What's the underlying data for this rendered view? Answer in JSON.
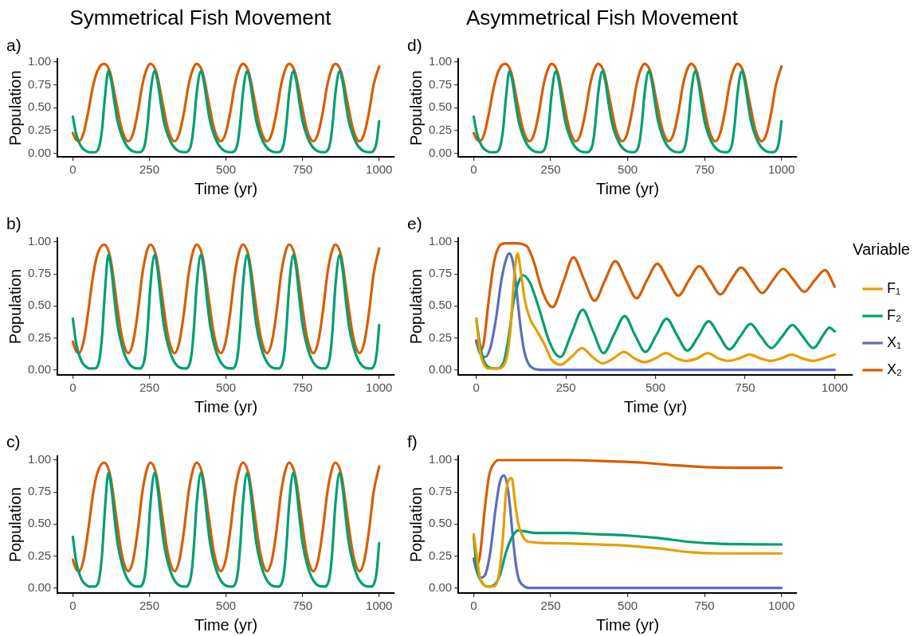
{
  "chart_data": [
    {
      "type": "line",
      "title": "Symmetrical Fish Movement",
      "subtitle": "a)",
      "xlabel": "Time (yr)",
      "ylabel": "Population",
      "xlim": [
        -50,
        1050
      ],
      "xticks": [
        0,
        250,
        500,
        750,
        1000
      ],
      "ylim": [
        -0.04,
        1.03
      ],
      "yticks": [
        {
          "value": 0,
          "label": "0.00"
        },
        {
          "value": 0.25,
          "label": "0.25"
        },
        {
          "value": 0.5,
          "label": "0.50"
        },
        {
          "value": 0.75,
          "label": "0.75"
        },
        {
          "value": 1,
          "label": "1.00"
        }
      ],
      "grid": false,
      "legend": false,
      "series": [
        {
          "color": "#009e73",
          "x": [
            0,
            10,
            20,
            30,
            40,
            55,
            70,
            85,
            95,
            105,
            116,
            126,
            136,
            146,
            161,
            176,
            196,
            216,
            231,
            238,
            245,
            253,
            267,
            277,
            287,
            297,
            312,
            327,
            347,
            367,
            382,
            389,
            396,
            404,
            418,
            428,
            438,
            448,
            463,
            478,
            498,
            518,
            533,
            540,
            547,
            555,
            569,
            579,
            589,
            599,
            614,
            629,
            649,
            669,
            684,
            691,
            698,
            706,
            720,
            730,
            740,
            750,
            765,
            780,
            800,
            820,
            835,
            842,
            849,
            857,
            871,
            881,
            891,
            901,
            916,
            931,
            951,
            971,
            986,
            993,
            1000
          ],
          "values": [
            0.4,
            0.22,
            0.12,
            0.06,
            0.03,
            0.01,
            0.01,
            0.06,
            0.25,
            0.62,
            0.9,
            0.78,
            0.55,
            0.35,
            0.18,
            0.08,
            0.02,
            0.01,
            0.05,
            0.15,
            0.35,
            0.65,
            0.9,
            0.78,
            0.55,
            0.35,
            0.18,
            0.08,
            0.02,
            0.01,
            0.05,
            0.15,
            0.35,
            0.65,
            0.9,
            0.78,
            0.55,
            0.35,
            0.18,
            0.08,
            0.02,
            0.01,
            0.05,
            0.15,
            0.35,
            0.65,
            0.9,
            0.78,
            0.55,
            0.35,
            0.18,
            0.08,
            0.02,
            0.01,
            0.05,
            0.15,
            0.35,
            0.65,
            0.9,
            0.78,
            0.55,
            0.35,
            0.18,
            0.08,
            0.02,
            0.01,
            0.05,
            0.15,
            0.35,
            0.65,
            0.9,
            0.78,
            0.55,
            0.35,
            0.18,
            0.08,
            0.02,
            0.01,
            0.05,
            0.15,
            0.35
          ]
        },
        {
          "color": "#d55e00",
          "x": [
            0,
            10,
            20,
            35,
            50,
            65,
            80,
            102,
            122,
            142,
            157,
            170,
            181,
            197,
            212,
            227,
            242,
            253,
            273,
            293,
            308,
            321,
            332,
            348,
            363,
            378,
            393,
            404,
            424,
            444,
            459,
            472,
            483,
            499,
            514,
            529,
            544,
            555,
            575,
            595,
            610,
            623,
            634,
            650,
            665,
            680,
            695,
            706,
            726,
            746,
            761,
            774,
            785,
            801,
            816,
            831,
            846,
            857,
            877,
            897,
            912,
            925,
            936,
            952,
            967,
            982,
            1000
          ],
          "values": [
            0.22,
            0.15,
            0.13,
            0.22,
            0.45,
            0.72,
            0.9,
            0.98,
            0.88,
            0.55,
            0.3,
            0.17,
            0.13,
            0.22,
            0.45,
            0.75,
            0.93,
            0.98,
            0.88,
            0.55,
            0.3,
            0.17,
            0.13,
            0.22,
            0.45,
            0.75,
            0.93,
            0.98,
            0.88,
            0.55,
            0.3,
            0.17,
            0.13,
            0.22,
            0.45,
            0.75,
            0.93,
            0.98,
            0.88,
            0.55,
            0.3,
            0.17,
            0.13,
            0.22,
            0.45,
            0.75,
            0.93,
            0.98,
            0.88,
            0.55,
            0.3,
            0.17,
            0.13,
            0.22,
            0.45,
            0.75,
            0.93,
            0.98,
            0.88,
            0.55,
            0.3,
            0.17,
            0.13,
            0.22,
            0.45,
            0.75,
            0.95
          ]
        }
      ]
    },
    {
      "type": "line",
      "title": "b)",
      "xlabel": "Time (yr)",
      "ylabel": "Population",
      "xlim": [
        -50,
        1050
      ],
      "xticks": [
        0,
        250,
        500,
        750,
        1000
      ],
      "ylim": [
        -0.04,
        1.03
      ],
      "yticks": [
        {
          "value": 0,
          "label": "0.00"
        },
        {
          "value": 0.25,
          "label": "0.25"
        },
        {
          "value": 0.5,
          "label": "0.50"
        },
        {
          "value": 0.75,
          "label": "0.75"
        },
        {
          "value": 1,
          "label": "1.00"
        }
      ],
      "grid": false,
      "legend": false,
      "series": [
        {
          "color": "#009e73",
          "x": [
            0,
            10,
            20,
            30,
            40,
            55,
            70,
            85,
            95,
            105,
            116,
            126,
            136,
            146,
            161,
            176,
            196,
            216,
            231,
            238,
            245,
            253,
            267,
            277,
            287,
            297,
            312,
            327,
            347,
            367,
            382,
            389,
            396,
            404,
            418,
            428,
            438,
            448,
            463,
            478,
            498,
            518,
            533,
            540,
            547,
            555,
            569,
            579,
            589,
            599,
            614,
            629,
            649,
            669,
            684,
            691,
            698,
            706,
            720,
            730,
            740,
            750,
            765,
            780,
            800,
            820,
            835,
            842,
            849,
            857,
            871,
            881,
            891,
            901,
            916,
            931,
            951,
            971,
            986,
            993,
            1000
          ],
          "values": [
            0.4,
            0.22,
            0.12,
            0.06,
            0.03,
            0.01,
            0.01,
            0.06,
            0.25,
            0.62,
            0.9,
            0.78,
            0.55,
            0.35,
            0.18,
            0.08,
            0.02,
            0.01,
            0.05,
            0.15,
            0.35,
            0.65,
            0.9,
            0.78,
            0.55,
            0.35,
            0.18,
            0.08,
            0.02,
            0.01,
            0.05,
            0.15,
            0.35,
            0.65,
            0.9,
            0.78,
            0.55,
            0.35,
            0.18,
            0.08,
            0.02,
            0.01,
            0.05,
            0.15,
            0.35,
            0.65,
            0.9,
            0.78,
            0.55,
            0.35,
            0.18,
            0.08,
            0.02,
            0.01,
            0.05,
            0.15,
            0.35,
            0.65,
            0.9,
            0.78,
            0.55,
            0.35,
            0.18,
            0.08,
            0.02,
            0.01,
            0.05,
            0.15,
            0.35,
            0.65,
            0.9,
            0.78,
            0.55,
            0.35,
            0.18,
            0.08,
            0.02,
            0.01,
            0.05,
            0.15,
            0.35
          ]
        },
        {
          "color": "#d55e00",
          "x": [
            0,
            10,
            20,
            35,
            50,
            65,
            80,
            102,
            122,
            142,
            157,
            170,
            181,
            197,
            212,
            227,
            242,
            253,
            273,
            293,
            308,
            321,
            332,
            348,
            363,
            378,
            393,
            404,
            424,
            444,
            459,
            472,
            483,
            499,
            514,
            529,
            544,
            555,
            575,
            595,
            610,
            623,
            634,
            650,
            665,
            680,
            695,
            706,
            726,
            746,
            761,
            774,
            785,
            801,
            816,
            831,
            846,
            857,
            877,
            897,
            912,
            925,
            936,
            952,
            967,
            982,
            1000
          ],
          "values": [
            0.22,
            0.15,
            0.13,
            0.22,
            0.45,
            0.72,
            0.9,
            0.98,
            0.88,
            0.55,
            0.3,
            0.17,
            0.13,
            0.22,
            0.45,
            0.75,
            0.93,
            0.98,
            0.88,
            0.55,
            0.3,
            0.17,
            0.13,
            0.22,
            0.45,
            0.75,
            0.93,
            0.98,
            0.88,
            0.55,
            0.3,
            0.17,
            0.13,
            0.22,
            0.45,
            0.75,
            0.93,
            0.98,
            0.88,
            0.55,
            0.3,
            0.17,
            0.13,
            0.22,
            0.45,
            0.75,
            0.93,
            0.98,
            0.88,
            0.55,
            0.3,
            0.17,
            0.13,
            0.22,
            0.45,
            0.75,
            0.93,
            0.98,
            0.88,
            0.55,
            0.3,
            0.17,
            0.13,
            0.22,
            0.45,
            0.75,
            0.95
          ]
        }
      ]
    },
    {
      "type": "line",
      "title": "c)",
      "xlabel": "Time (yr)",
      "ylabel": "Population",
      "xlim": [
        -50,
        1050
      ],
      "xticks": [
        0,
        250,
        500,
        750,
        1000
      ],
      "ylim": [
        -0.04,
        1.03
      ],
      "yticks": [
        {
          "value": 0,
          "label": "0.00"
        },
        {
          "value": 0.25,
          "label": "0.25"
        },
        {
          "value": 0.5,
          "label": "0.50"
        },
        {
          "value": 0.75,
          "label": "0.75"
        },
        {
          "value": 1,
          "label": "1.00"
        }
      ],
      "grid": false,
      "legend": false,
      "series": [
        {
          "color": "#009e73",
          "x": [
            0,
            10,
            20,
            30,
            40,
            55,
            70,
            85,
            95,
            105,
            116,
            126,
            136,
            146,
            161,
            176,
            196,
            216,
            231,
            238,
            245,
            253,
            267,
            277,
            287,
            297,
            312,
            327,
            347,
            367,
            382,
            389,
            396,
            404,
            418,
            428,
            438,
            448,
            463,
            478,
            498,
            518,
            533,
            540,
            547,
            555,
            569,
            579,
            589,
            599,
            614,
            629,
            649,
            669,
            684,
            691,
            698,
            706,
            720,
            730,
            740,
            750,
            765,
            780,
            800,
            820,
            835,
            842,
            849,
            857,
            871,
            881,
            891,
            901,
            916,
            931,
            951,
            971,
            986,
            993,
            1000
          ],
          "values": [
            0.4,
            0.22,
            0.12,
            0.06,
            0.03,
            0.01,
            0.01,
            0.06,
            0.25,
            0.62,
            0.9,
            0.78,
            0.55,
            0.35,
            0.18,
            0.08,
            0.02,
            0.01,
            0.05,
            0.15,
            0.35,
            0.65,
            0.9,
            0.78,
            0.55,
            0.35,
            0.18,
            0.08,
            0.02,
            0.01,
            0.05,
            0.15,
            0.35,
            0.65,
            0.9,
            0.78,
            0.55,
            0.35,
            0.18,
            0.08,
            0.02,
            0.01,
            0.05,
            0.15,
            0.35,
            0.65,
            0.9,
            0.78,
            0.55,
            0.35,
            0.18,
            0.08,
            0.02,
            0.01,
            0.05,
            0.15,
            0.35,
            0.65,
            0.9,
            0.78,
            0.55,
            0.35,
            0.18,
            0.08,
            0.02,
            0.01,
            0.05,
            0.15,
            0.35,
            0.65,
            0.9,
            0.78,
            0.55,
            0.35,
            0.18,
            0.08,
            0.02,
            0.01,
            0.05,
            0.15,
            0.35
          ]
        },
        {
          "color": "#d55e00",
          "x": [
            0,
            10,
            20,
            35,
            50,
            65,
            80,
            102,
            122,
            142,
            157,
            170,
            181,
            197,
            212,
            227,
            242,
            253,
            273,
            293,
            308,
            321,
            332,
            348,
            363,
            378,
            393,
            404,
            424,
            444,
            459,
            472,
            483,
            499,
            514,
            529,
            544,
            555,
            575,
            595,
            610,
            623,
            634,
            650,
            665,
            680,
            695,
            706,
            726,
            746,
            761,
            774,
            785,
            801,
            816,
            831,
            846,
            857,
            877,
            897,
            912,
            925,
            936,
            952,
            967,
            982,
            1000
          ],
          "values": [
            0.22,
            0.15,
            0.13,
            0.22,
            0.45,
            0.72,
            0.9,
            0.98,
            0.88,
            0.55,
            0.3,
            0.17,
            0.13,
            0.22,
            0.45,
            0.75,
            0.93,
            0.98,
            0.88,
            0.55,
            0.3,
            0.17,
            0.13,
            0.22,
            0.45,
            0.75,
            0.93,
            0.98,
            0.88,
            0.55,
            0.3,
            0.17,
            0.13,
            0.22,
            0.45,
            0.75,
            0.93,
            0.98,
            0.88,
            0.55,
            0.3,
            0.17,
            0.13,
            0.22,
            0.45,
            0.75,
            0.93,
            0.98,
            0.88,
            0.55,
            0.3,
            0.17,
            0.13,
            0.22,
            0.45,
            0.75,
            0.93,
            0.98,
            0.88,
            0.55,
            0.3,
            0.17,
            0.13,
            0.22,
            0.45,
            0.75,
            0.95
          ]
        }
      ]
    },
    {
      "type": "line",
      "title": "Asymmetrical Fish Movement",
      "subtitle": "d)",
      "xlabel": "Time (yr)",
      "ylabel": "Population",
      "xlim": [
        -50,
        1050
      ],
      "xticks": [
        0,
        250,
        500,
        750,
        1000
      ],
      "ylim": [
        -0.04,
        1.03
      ],
      "yticks": [
        {
          "value": 0,
          "label": "0.00"
        },
        {
          "value": 0.25,
          "label": "0.25"
        },
        {
          "value": 0.5,
          "label": "0.50"
        },
        {
          "value": 0.75,
          "label": "0.75"
        },
        {
          "value": 1,
          "label": "1.00"
        }
      ],
      "grid": false,
      "legend": false,
      "series": [
        {
          "color": "#009e73",
          "x": [
            0,
            10,
            20,
            30,
            40,
            55,
            70,
            85,
            95,
            105,
            116,
            126,
            136,
            146,
            161,
            176,
            196,
            216,
            231,
            238,
            245,
            253,
            267,
            277,
            287,
            297,
            312,
            327,
            347,
            367,
            382,
            389,
            396,
            404,
            418,
            428,
            438,
            448,
            463,
            478,
            498,
            518,
            533,
            540,
            547,
            555,
            569,
            579,
            589,
            599,
            614,
            629,
            649,
            669,
            684,
            691,
            698,
            706,
            720,
            730,
            740,
            750,
            765,
            780,
            800,
            820,
            835,
            842,
            849,
            857,
            871,
            881,
            891,
            901,
            916,
            931,
            951,
            971,
            986,
            993,
            1000
          ],
          "values": [
            0.4,
            0.22,
            0.12,
            0.06,
            0.03,
            0.01,
            0.01,
            0.06,
            0.25,
            0.62,
            0.9,
            0.78,
            0.55,
            0.35,
            0.18,
            0.08,
            0.02,
            0.01,
            0.05,
            0.15,
            0.35,
            0.65,
            0.9,
            0.78,
            0.55,
            0.35,
            0.18,
            0.08,
            0.02,
            0.01,
            0.05,
            0.15,
            0.35,
            0.65,
            0.9,
            0.78,
            0.55,
            0.35,
            0.18,
            0.08,
            0.02,
            0.01,
            0.05,
            0.15,
            0.35,
            0.65,
            0.9,
            0.78,
            0.55,
            0.35,
            0.18,
            0.08,
            0.02,
            0.01,
            0.05,
            0.15,
            0.35,
            0.65,
            0.9,
            0.78,
            0.55,
            0.35,
            0.18,
            0.08,
            0.02,
            0.01,
            0.05,
            0.15,
            0.35,
            0.65,
            0.9,
            0.78,
            0.55,
            0.35,
            0.18,
            0.08,
            0.02,
            0.01,
            0.05,
            0.15,
            0.35
          ]
        },
        {
          "color": "#d55e00",
          "x": [
            0,
            10,
            20,
            35,
            50,
            65,
            80,
            102,
            122,
            142,
            157,
            170,
            181,
            197,
            212,
            227,
            242,
            253,
            273,
            293,
            308,
            321,
            332,
            348,
            363,
            378,
            393,
            404,
            424,
            444,
            459,
            472,
            483,
            499,
            514,
            529,
            544,
            555,
            575,
            595,
            610,
            623,
            634,
            650,
            665,
            680,
            695,
            706,
            726,
            746,
            761,
            774,
            785,
            801,
            816,
            831,
            846,
            857,
            877,
            897,
            912,
            925,
            936,
            952,
            967,
            982,
            1000
          ],
          "values": [
            0.22,
            0.15,
            0.13,
            0.22,
            0.45,
            0.72,
            0.9,
            0.98,
            0.88,
            0.55,
            0.3,
            0.17,
            0.13,
            0.22,
            0.45,
            0.75,
            0.93,
            0.98,
            0.88,
            0.55,
            0.3,
            0.17,
            0.13,
            0.22,
            0.45,
            0.75,
            0.93,
            0.98,
            0.88,
            0.55,
            0.3,
            0.17,
            0.13,
            0.22,
            0.45,
            0.75,
            0.93,
            0.98,
            0.88,
            0.55,
            0.3,
            0.17,
            0.13,
            0.22,
            0.45,
            0.75,
            0.93,
            0.98,
            0.88,
            0.55,
            0.3,
            0.17,
            0.13,
            0.22,
            0.45,
            0.75,
            0.93,
            0.98,
            0.88,
            0.55,
            0.3,
            0.17,
            0.13,
            0.22,
            0.45,
            0.75,
            0.95
          ]
        }
      ]
    },
    {
      "type": "line",
      "title": "e)",
      "xlabel": "Time (yr)",
      "ylabel": "Population",
      "xlim": [
        -50,
        1050
      ],
      "xticks": [
        0,
        250,
        500,
        750,
        1000
      ],
      "ylim": [
        -0.04,
        1.03
      ],
      "yticks": [
        {
          "value": 0,
          "label": "0.00"
        },
        {
          "value": 0.25,
          "label": "0.25"
        },
        {
          "value": 0.5,
          "label": "0.50"
        },
        {
          "value": 0.75,
          "label": "0.75"
        },
        {
          "value": 1,
          "label": "1.00"
        }
      ],
      "grid": false,
      "legend": "right",
      "legend_title": "Variable",
      "series": [
        {
          "name": "F₁",
          "color": "#e69f00",
          "x": [
            0,
            10,
            20,
            35,
            60,
            80,
            95,
            105,
            115,
            125,
            135,
            150,
            170,
            190,
            210,
            236,
            265,
            295,
            324,
            353,
            383,
            412,
            441,
            470,
            500,
            529,
            558,
            587,
            617,
            646,
            675,
            704,
            734,
            763,
            792,
            821,
            851,
            880,
            909,
            938,
            968,
            1000
          ],
          "values": [
            0.4,
            0.15,
            0.05,
            0.01,
            0.01,
            0.05,
            0.3,
            0.7,
            0.91,
            0.75,
            0.55,
            0.4,
            0.3,
            0.2,
            0.08,
            0.04,
            0.1,
            0.17,
            0.1,
            0.05,
            0.09,
            0.14,
            0.09,
            0.06,
            0.09,
            0.13,
            0.09,
            0.07,
            0.09,
            0.13,
            0.09,
            0.07,
            0.09,
            0.12,
            0.09,
            0.07,
            0.09,
            0.12,
            0.09,
            0.07,
            0.09,
            0.12
          ]
        },
        {
          "name": "F₂",
          "color": "#009e73",
          "x": [
            0,
            10,
            20,
            35,
            55,
            75,
            90,
            105,
            120,
            130,
            150,
            175,
            200,
            220,
            235,
            265,
            297,
            326,
            355,
            385,
            414,
            443,
            472,
            502,
            531,
            560,
            589,
            619,
            648,
            677,
            706,
            736,
            765,
            794,
            823,
            853,
            882,
            911,
            940,
            970,
            985,
            1000
          ],
          "values": [
            0.4,
            0.2,
            0.08,
            0.02,
            0.01,
            0.05,
            0.25,
            0.55,
            0.7,
            0.74,
            0.68,
            0.48,
            0.25,
            0.13,
            0.1,
            0.28,
            0.47,
            0.3,
            0.13,
            0.28,
            0.42,
            0.27,
            0.14,
            0.27,
            0.4,
            0.27,
            0.15,
            0.26,
            0.38,
            0.27,
            0.16,
            0.26,
            0.36,
            0.26,
            0.17,
            0.26,
            0.35,
            0.26,
            0.17,
            0.28,
            0.33,
            0.3
          ]
        },
        {
          "name": "X₁",
          "color": "#5b6ebd",
          "x": [
            0,
            10,
            25,
            40,
            55,
            70,
            85,
            93,
            105,
            115,
            125,
            135,
            145,
            160,
            185,
            300,
            500,
            750,
            1000
          ],
          "values": [
            0.22,
            0.13,
            0.1,
            0.18,
            0.4,
            0.7,
            0.88,
            0.91,
            0.8,
            0.55,
            0.3,
            0.13,
            0.05,
            0.01,
            0,
            0,
            0,
            0,
            0
          ]
        },
        {
          "name": "X₂",
          "color": "#d55e00",
          "x": [
            0,
            10,
            20,
            35,
            50,
            65,
            80,
            110,
            140,
            160,
            180,
            200,
            213,
            242,
            271,
            300,
            330,
            359,
            388,
            418,
            447,
            476,
            505,
            535,
            564,
            593,
            622,
            652,
            681,
            710,
            739,
            769,
            798,
            827,
            856,
            886,
            915,
            944,
            973,
            1000
          ],
          "values": [
            0.23,
            0.15,
            0.2,
            0.55,
            0.85,
            0.97,
            0.99,
            0.99,
            0.97,
            0.85,
            0.65,
            0.52,
            0.49,
            0.68,
            0.88,
            0.71,
            0.54,
            0.7,
            0.85,
            0.7,
            0.56,
            0.7,
            0.83,
            0.7,
            0.58,
            0.7,
            0.81,
            0.7,
            0.59,
            0.7,
            0.8,
            0.7,
            0.6,
            0.7,
            0.79,
            0.7,
            0.61,
            0.7,
            0.78,
            0.65
          ]
        }
      ]
    },
    {
      "type": "line",
      "title": "f)",
      "xlabel": "Time (yr)",
      "ylabel": "Population",
      "xlim": [
        -50,
        1050
      ],
      "xticks": [
        0,
        250,
        500,
        750,
        1000
      ],
      "ylim": [
        -0.04,
        1.03
      ],
      "yticks": [
        {
          "value": 0,
          "label": "0.00"
        },
        {
          "value": 0.25,
          "label": "0.25"
        },
        {
          "value": 0.5,
          "label": "0.50"
        },
        {
          "value": 0.75,
          "label": "0.75"
        },
        {
          "value": 1,
          "label": "1.00"
        }
      ],
      "grid": false,
      "legend": false,
      "series": [
        {
          "color": "#e69f00",
          "x": [
            0,
            10,
            20,
            35,
            60,
            80,
            95,
            105,
            123,
            135,
            145,
            160,
            180,
            250,
            400,
            500,
            600,
            700,
            800,
            1000
          ],
          "values": [
            0.42,
            0.25,
            0.08,
            0.02,
            0.01,
            0.08,
            0.4,
            0.75,
            0.86,
            0.65,
            0.5,
            0.4,
            0.36,
            0.35,
            0.34,
            0.33,
            0.31,
            0.28,
            0.27,
            0.27
          ]
        },
        {
          "color": "#009e73",
          "x": [
            0,
            10,
            25,
            45,
            65,
            85,
            105,
            125,
            145,
            200,
            300,
            400,
            500,
            600,
            700,
            800,
            1000
          ],
          "values": [
            0.4,
            0.15,
            0.05,
            0.01,
            0.02,
            0.1,
            0.28,
            0.4,
            0.45,
            0.43,
            0.43,
            0.42,
            0.41,
            0.39,
            0.36,
            0.345,
            0.34
          ]
        },
        {
          "color": "#5b6ebd",
          "x": [
            0,
            10,
            25,
            40,
            55,
            70,
            85,
            98,
            115,
            125,
            135,
            145,
            160,
            180,
            300,
            500,
            750,
            1000
          ],
          "values": [
            0.22,
            0.13,
            0.08,
            0.12,
            0.3,
            0.6,
            0.83,
            0.88,
            0.7,
            0.45,
            0.22,
            0.08,
            0.02,
            0,
            0,
            0,
            0,
            0
          ]
        },
        {
          "color": "#d55e00",
          "x": [
            0,
            10,
            20,
            35,
            50,
            65,
            80,
            300,
            450,
            550,
            650,
            750,
            850,
            1000
          ],
          "values": [
            0.23,
            0.18,
            0.25,
            0.6,
            0.88,
            0.97,
            1.0,
            1.0,
            0.99,
            0.98,
            0.96,
            0.945,
            0.94,
            0.94
          ]
        }
      ]
    }
  ]
}
